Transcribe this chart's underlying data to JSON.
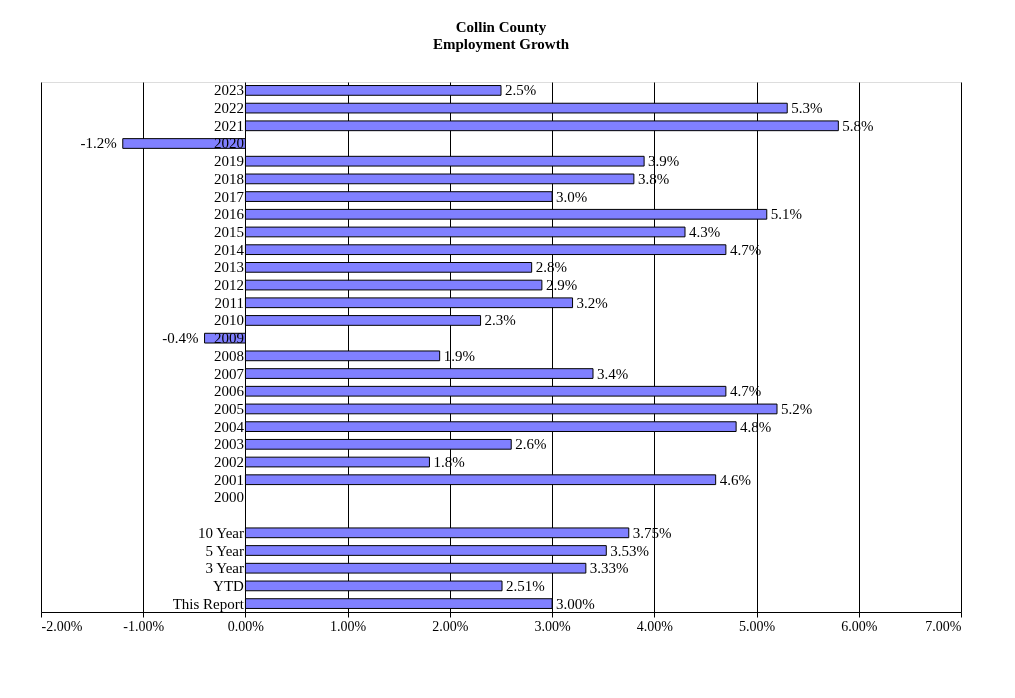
{
  "chart_data": {
    "type": "bar",
    "orientation": "horizontal",
    "title": [
      "Collin County",
      "Employment  Growth"
    ],
    "categories": [
      "2023",
      "2022",
      "2021",
      "2020",
      "2019",
      "2018",
      "2017",
      "2016",
      "2015",
      "2014",
      "2013",
      "2012",
      "2011",
      "2010",
      "2009",
      "2008",
      "2007",
      "2006",
      "2005",
      "2004",
      "2003",
      "2002",
      "2001",
      "2000",
      null,
      "10 Year",
      "5 Year",
      "3 Year",
      "YTD",
      "This Report"
    ],
    "values": [
      2.5,
      5.3,
      5.8,
      -1.2,
      3.9,
      3.8,
      3.0,
      5.1,
      4.3,
      4.7,
      2.8,
      2.9,
      3.2,
      2.3,
      -0.4,
      1.9,
      3.4,
      4.7,
      5.2,
      4.8,
      2.6,
      1.8,
      4.6,
      null,
      null,
      3.75,
      3.53,
      3.33,
      2.51,
      3.0
    ],
    "value_labels": [
      "2.5%",
      "5.3%",
      "5.8%",
      "-1.2%",
      "3.9%",
      "3.8%",
      "3.0%",
      "5.1%",
      "4.3%",
      "4.7%",
      "2.8%",
      "2.9%",
      "3.2%",
      "2.3%",
      "-0.4%",
      "1.9%",
      "3.4%",
      "4.7%",
      "5.2%",
      "4.8%",
      "2.6%",
      "1.8%",
      "4.6%",
      null,
      null,
      "3.75%",
      "3.53%",
      "3.33%",
      "2.51%",
      "3.00%"
    ],
    "color": "#8080ff",
    "xlim": [
      -2,
      7
    ],
    "xticks": [
      {
        "value": -2,
        "label": "-2.00%"
      },
      {
        "value": -1,
        "label": "-1.00%"
      },
      {
        "value": 0,
        "label": "0.00%"
      },
      {
        "value": 1,
        "label": "1.00%"
      },
      {
        "value": 2,
        "label": "2.00%"
      },
      {
        "value": 3,
        "label": "3.00%"
      },
      {
        "value": 4,
        "label": "4.00%"
      },
      {
        "value": 5,
        "label": "5.00%"
      },
      {
        "value": 6,
        "label": "6.00%"
      },
      {
        "value": 7,
        "label": "7.00%"
      }
    ],
    "grid": "x"
  }
}
